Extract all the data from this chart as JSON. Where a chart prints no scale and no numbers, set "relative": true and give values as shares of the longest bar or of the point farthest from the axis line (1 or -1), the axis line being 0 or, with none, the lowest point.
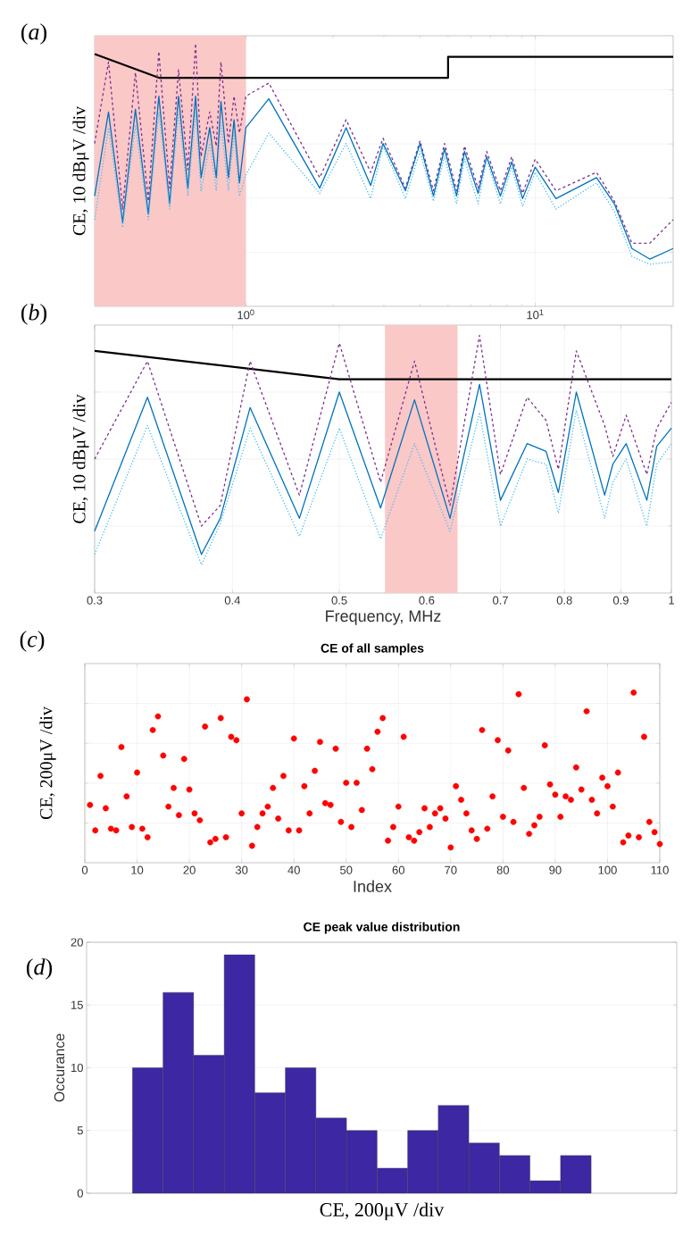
{
  "chart_data": [
    {
      "type": "line",
      "relative": true,
      "ylabel": "CE, 10  dBμV /div",
      "annotations": [
        "(*a*)"
      ],
      "log": "x",
      "grid": true,
      "tick_labels": "x",
      "xlim": [
        0.3,
        30
      ],
      "xticks": [
        {
          "value": 1,
          "label": "10$^{0}$"
        },
        {
          "value": 10,
          "label": "10$^{1}$"
        }
      ],
      "bands": [
        {
          "axis": "x",
          "from": 0.3,
          "to": 1,
          "color": "#fbc8c8"
        }
      ],
      "x": [
        0.3,
        0.335,
        0.375,
        0.415,
        0.46,
        0.5,
        0.545,
        0.585,
        0.63,
        0.67,
        0.7,
        0.75,
        0.79,
        0.82,
        0.87,
        0.91,
        0.95,
        1.0,
        1.2,
        1.8,
        2.22,
        2.7,
        2.98,
        3.56,
        4.0,
        4.45,
        4.86,
        5.35,
        5.7,
        6.35,
        6.8,
        7.58,
        8.3,
        9.05,
        10,
        11.8,
        16.3,
        18.8,
        21.6,
        24.9,
        30
      ],
      "series": [
        {
          "color": "#000000",
          "line_style": "solid",
          "x": [
            0.3,
            0.5,
            5,
            5,
            30
          ],
          "values": [
            0.96,
            0.87,
            0.87,
            0.95,
            0.95
          ]
        },
        {
          "color": "#7e2f8e",
          "line_style": "dashed",
          "values": [
            0.62,
            0.93,
            0.37,
            0.89,
            0.4,
            0.97,
            0.45,
            0.9,
            0.52,
            1.0,
            0.57,
            0.74,
            0.61,
            0.93,
            0.62,
            0.8,
            0.66,
            0.8,
            0.85,
            0.49,
            0.71,
            0.51,
            0.64,
            0.45,
            0.63,
            0.44,
            0.62,
            0.44,
            0.61,
            0.45,
            0.59,
            0.44,
            0.57,
            0.43,
            0.56,
            0.44,
            0.51,
            0.4,
            0.24,
            0.24,
            0.33
          ]
        },
        {
          "color": "#0072bd",
          "line_style": "solid",
          "values": [
            0.42,
            0.74,
            0.32,
            0.75,
            0.35,
            0.8,
            0.39,
            0.8,
            0.45,
            0.8,
            0.49,
            0.68,
            0.49,
            0.78,
            0.49,
            0.71,
            0.47,
            0.68,
            0.79,
            0.45,
            0.68,
            0.46,
            0.62,
            0.44,
            0.62,
            0.42,
            0.6,
            0.42,
            0.59,
            0.43,
            0.57,
            0.42,
            0.55,
            0.41,
            0.53,
            0.41,
            0.49,
            0.39,
            0.22,
            0.18,
            0.22
          ]
        },
        {
          "color": "#4dbeee",
          "line_style": "dotted",
          "values": [
            0.33,
            0.68,
            0.3,
            0.69,
            0.33,
            0.74,
            0.37,
            0.74,
            0.42,
            0.74,
            0.44,
            0.62,
            0.44,
            0.7,
            0.44,
            0.66,
            0.42,
            0.5,
            0.66,
            0.43,
            0.62,
            0.41,
            0.61,
            0.41,
            0.59,
            0.4,
            0.57,
            0.39,
            0.56,
            0.39,
            0.56,
            0.39,
            0.53,
            0.38,
            0.51,
            0.37,
            0.47,
            0.36,
            0.19,
            0.16,
            0.17
          ]
        }
      ]
    },
    {
      "type": "line",
      "relative": true,
      "xlabel": "Frequency, MHz",
      "ylabel": "CE, 10  dBμV /div",
      "annotations": [
        "(*b*)"
      ],
      "log": "x",
      "grid": true,
      "tick_labels": "x",
      "xlim": [
        0.3,
        1
      ],
      "xticks": [
        0.3,
        0.4,
        0.5,
        0.6,
        0.7,
        0.8,
        0.9,
        1
      ],
      "bands": [
        {
          "axis": "x",
          "from": 0.55,
          "to": 0.64,
          "color": "#fbc8c8"
        }
      ],
      "x": [
        0.3,
        0.335,
        0.375,
        0.39,
        0.415,
        0.46,
        0.5,
        0.545,
        0.585,
        0.63,
        0.67,
        0.7,
        0.74,
        0.77,
        0.79,
        0.82,
        0.87,
        0.885,
        0.91,
        0.95,
        0.97,
        1.0
      ],
      "series": [
        {
          "color": "#000000",
          "line_style": "solid",
          "x": [
            0.3,
            0.5,
            1
          ],
          "values": [
            0.94,
            0.83,
            0.83
          ]
        },
        {
          "color": "#7e2f8e",
          "line_style": "dashed",
          "values": [
            0.52,
            0.9,
            0.26,
            0.34,
            0.9,
            0.38,
            0.97,
            0.43,
            0.9,
            0.34,
            1.0,
            0.46,
            0.76,
            0.67,
            0.48,
            0.94,
            0.65,
            0.53,
            0.69,
            0.46,
            0.64,
            0.74
          ]
        },
        {
          "color": "#0072bd",
          "line_style": "solid",
          "values": [
            0.24,
            0.76,
            0.15,
            0.29,
            0.72,
            0.29,
            0.78,
            0.33,
            0.75,
            0.29,
            0.81,
            0.36,
            0.58,
            0.55,
            0.39,
            0.78,
            0.38,
            0.5,
            0.58,
            0.36,
            0.57,
            0.64
          ]
        },
        {
          "color": "#4dbeee",
          "line_style": "dotted",
          "values": [
            0.15,
            0.65,
            0.11,
            0.27,
            0.64,
            0.22,
            0.64,
            0.21,
            0.58,
            0.24,
            0.7,
            0.26,
            0.52,
            0.5,
            0.31,
            0.71,
            0.29,
            0.43,
            0.52,
            0.26,
            0.5,
            0.58
          ]
        }
      ]
    },
    {
      "type": "scatter",
      "relative": true,
      "title": "CE of all samples",
      "xlabel": "Index",
      "ylabel": "CE, 200μV /div",
      "annotations": [
        "(*c*)"
      ],
      "grid": true,
      "tick_labels": "x",
      "marker": "circle",
      "color": "#ff0000",
      "xlim": [
        0,
        110
      ],
      "xticks": [
        0,
        10,
        20,
        30,
        40,
        50,
        60,
        70,
        80,
        90,
        100,
        110
      ],
      "x": [
        1,
        2,
        3,
        4,
        5,
        6,
        7,
        8,
        9,
        10,
        11,
        12,
        13,
        14,
        15,
        16,
        17,
        18,
        19,
        20,
        21,
        22,
        23,
        24,
        25,
        26,
        27,
        28,
        29,
        30,
        31,
        32,
        33,
        34,
        35,
        36,
        37,
        38,
        39,
        40,
        41,
        42,
        43,
        44,
        45,
        46,
        47,
        48,
        49,
        50,
        51,
        52,
        53,
        54,
        55,
        56,
        57,
        58,
        59,
        60,
        61,
        62,
        63,
        64,
        65,
        66,
        67,
        68,
        69,
        70,
        71,
        72,
        73,
        74,
        75,
        76,
        77,
        78,
        79,
        80,
        81,
        82,
        83,
        84,
        85,
        86,
        87,
        88,
        89,
        90,
        91,
        92,
        93,
        94,
        95,
        96,
        97,
        98,
        99,
        100,
        101,
        102,
        103,
        104,
        105,
        106,
        107,
        108,
        109,
        110
      ],
      "values": [
        0.34,
        0.19,
        0.51,
        0.32,
        0.2,
        0.19,
        0.68,
        0.39,
        0.21,
        0.53,
        0.2,
        0.15,
        0.78,
        0.86,
        0.63,
        0.33,
        0.44,
        0.28,
        0.61,
        0.43,
        0.29,
        0.25,
        0.8,
        0.12,
        0.14,
        0.85,
        0.15,
        0.74,
        0.72,
        0.29,
        0.96,
        0.1,
        0.21,
        0.29,
        0.33,
        0.44,
        0.26,
        0.51,
        0.19,
        0.73,
        0.19,
        0.45,
        0.29,
        0.54,
        0.71,
        0.35,
        0.34,
        0.67,
        0.24,
        0.47,
        0.21,
        0.47,
        0.31,
        0.67,
        0.55,
        0.77,
        0.85,
        0.13,
        0.21,
        0.33,
        0.74,
        0.15,
        0.13,
        0.18,
        0.32,
        0.21,
        0.29,
        0.32,
        0.26,
        0.09,
        0.45,
        0.37,
        0.29,
        0.19,
        0.14,
        0.78,
        0.2,
        0.39,
        0.72,
        0.27,
        0.66,
        0.24,
        0.99,
        0.44,
        0.17,
        0.22,
        0.27,
        0.69,
        0.46,
        0.4,
        0.27,
        0.39,
        0.37,
        0.56,
        0.43,
        0.89,
        0.37,
        0.29,
        0.5,
        0.45,
        0.33,
        0.53,
        0.12,
        0.16,
        1.0,
        0.15,
        0.74,
        0.24,
        0.18,
        0.11
      ]
    },
    {
      "type": "bar",
      "title": "CE peak value distribution",
      "xlabel": "CE, 200μV  /div",
      "ylabel": "Occurance",
      "annotations": [
        "(*d*)"
      ],
      "grid": "y",
      "tick_labels": "y",
      "color": "#3d27a3",
      "categories": [
        null,
        null,
        null,
        null,
        null,
        null,
        null,
        null,
        null,
        null,
        null,
        null,
        null,
        null,
        null
      ],
      "values": [
        10,
        16,
        11,
        19,
        8,
        10,
        6,
        5,
        2,
        5,
        7,
        4,
        3,
        1,
        3
      ],
      "ylim": [
        0,
        20
      ],
      "yticks": [
        0,
        5,
        10,
        15,
        20
      ]
    }
  ]
}
